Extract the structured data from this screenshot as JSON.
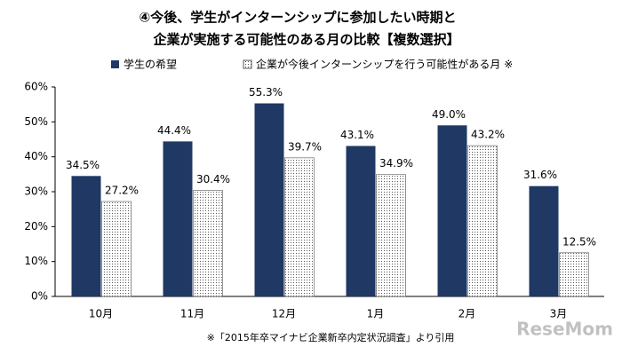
{
  "chart_data": {
    "type": "bar",
    "title": [
      "④今後、学生がインターンシップに参加したい時期と",
      "企業が実施する可能性のある月の比較【複数選択】"
    ],
    "categories": [
      "10月",
      "11月",
      "12月",
      "1月",
      "2月",
      "3月"
    ],
    "series": [
      {
        "name": "学生の希望",
        "color": "#1f3864",
        "pattern": "solid",
        "values": [
          34.5,
          44.4,
          55.3,
          43.1,
          49.0,
          31.6
        ],
        "value_labels": [
          "34.5%",
          "44.4%",
          "55.3%",
          "43.1%",
          "49.0%",
          "31.6%"
        ]
      },
      {
        "name": "企業が今後インターンシップを行う可能性がある月 ※",
        "color": "#ffffff",
        "pattern": "dots",
        "values": [
          27.2,
          30.4,
          39.7,
          34.9,
          43.2,
          12.5
        ],
        "value_labels": [
          "27.2%",
          "30.4%",
          "39.7%",
          "34.9%",
          "43.2%",
          "12.5%"
        ]
      }
    ],
    "ylim": [
      0,
      60
    ],
    "yticks": [
      {
        "value": 0,
        "label": "0%"
      },
      {
        "value": 10,
        "label": "10%"
      },
      {
        "value": 20,
        "label": "20%"
      },
      {
        "value": 30,
        "label": "30%"
      },
      {
        "value": 40,
        "label": "40%"
      },
      {
        "value": 50,
        "label": "50%"
      },
      {
        "value": 60,
        "label": "60%"
      }
    ],
    "grid": false,
    "source": "※「2015年卒マイナビ企業新卒内定状況調査」より引用",
    "watermark": "ReseMom"
  }
}
